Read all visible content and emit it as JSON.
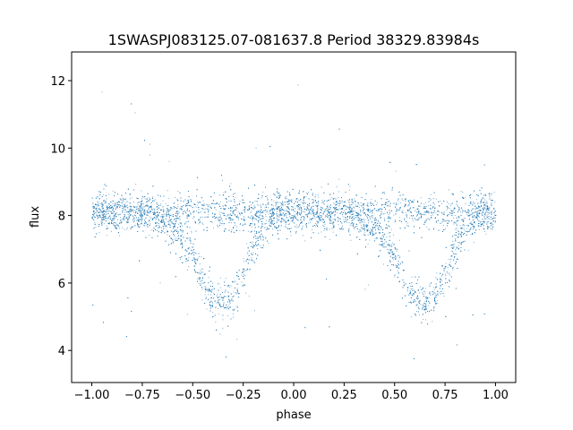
{
  "chart_data": {
    "type": "scatter",
    "title": "1SWASPJ083125.07-081637.8 Period 38329.83984s",
    "xlabel": "phase",
    "ylabel": "flux",
    "xlim": [
      -1.1,
      1.1
    ],
    "ylim": [
      3.05,
      12.85
    ],
    "x_ticks": [
      -1.0,
      -0.75,
      -0.5,
      -0.25,
      0.0,
      0.25,
      0.5,
      0.75,
      1.0
    ],
    "x_tick_labels": [
      "−1.00",
      "−0.75",
      "−0.50",
      "−0.25",
      "0.00",
      "0.25",
      "0.50",
      "0.75",
      "1.00"
    ],
    "y_ticks": [
      4,
      6,
      8,
      10,
      12
    ],
    "y_tick_labels": [
      "4",
      "6",
      "8",
      "10",
      "12"
    ],
    "grid": false,
    "legend": "none",
    "point_color": "#1f77b4",
    "series": [
      {
        "name": "",
        "description_of_shape": "folded light curve",
        "baseline_flux": 8.1,
        "phase_range": [
          -1.0,
          1.0
        ],
        "eclipses": [
          {
            "center_phase": -0.35,
            "min_flux": 5.4
          },
          {
            "center_phase": 0.65,
            "min_flux": 5.4
          }
        ],
        "x": [
          -1.0,
          -0.9,
          -0.8,
          -0.7,
          -0.6,
          -0.5,
          -0.45,
          -0.4,
          -0.35,
          -0.3,
          -0.25,
          -0.2,
          -0.1,
          0.0,
          0.1,
          0.2,
          0.3,
          0.4,
          0.5,
          0.55,
          0.6,
          0.65,
          0.7,
          0.75,
          0.8,
          0.9,
          1.0
        ],
        "y": [
          8.1,
          8.1,
          8.1,
          8.1,
          7.6,
          6.8,
          6.0,
          5.5,
          5.4,
          5.6,
          6.3,
          7.1,
          8.1,
          8.1,
          8.1,
          8.1,
          8.1,
          7.6,
          6.8,
          6.0,
          5.5,
          5.4,
          5.6,
          6.3,
          7.1,
          8.1,
          8.1
        ]
      }
    ]
  }
}
